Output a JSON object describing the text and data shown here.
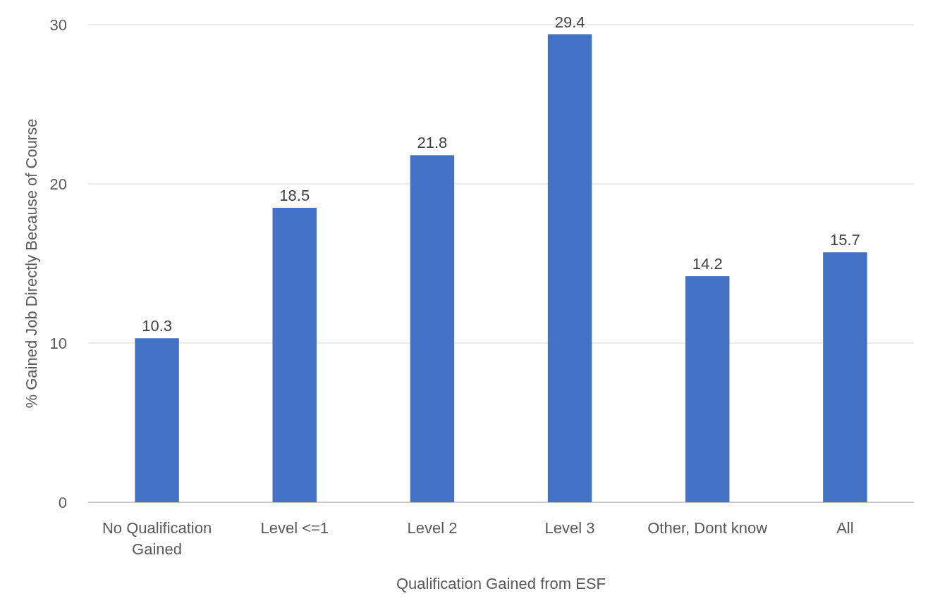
{
  "chart_data": {
    "type": "bar",
    "xlabel": "Qualification Gained from ESF",
    "ylabel": "% Gained Job Directly Because of Course",
    "categories": [
      "No Qualification Gained",
      "Level <=1",
      "Level 2",
      "Level 3",
      "Other, Dont know",
      "All"
    ],
    "values": [
      10.3,
      18.5,
      21.8,
      29.4,
      14.2,
      15.7
    ],
    "color": "#4472c4",
    "ylim": [
      0,
      30
    ],
    "yticks": [
      0,
      10,
      20,
      30
    ],
    "grid": "y",
    "data_labels": true
  }
}
